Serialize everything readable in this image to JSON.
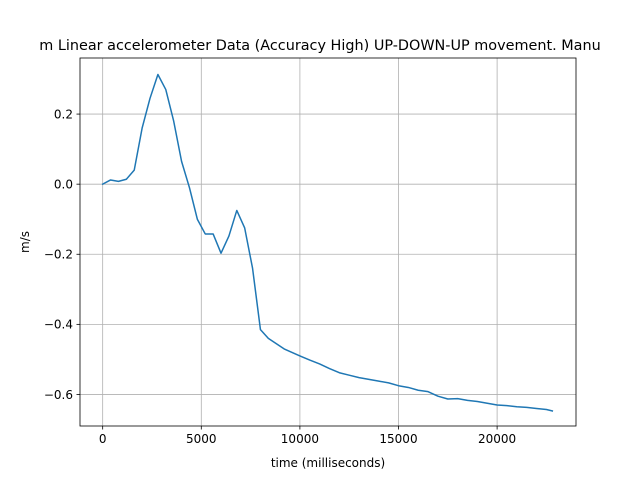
{
  "chart_data": {
    "type": "line",
    "title": "m Linear accelerometer Data (Accuracy High) UP-DOWN-UP movement. Manu",
    "xlabel": "time (milliseconds)",
    "ylabel": "m/s",
    "xlim": [
      -1150,
      24000
    ],
    "ylim": [
      -0.69,
      0.36
    ],
    "xticks": [
      0,
      5000,
      10000,
      15000,
      20000
    ],
    "xtick_labels": [
      "0",
      "5000",
      "10000",
      "15000",
      "20000"
    ],
    "yticks": [
      0.2,
      0.0,
      -0.2,
      -0.4,
      -0.6
    ],
    "ytick_labels": [
      "0.2",
      "0.0",
      "−0.2",
      "−0.4",
      "−0.6"
    ],
    "grid": true,
    "series": [
      {
        "color": "#1f77b4",
        "x": [
          0,
          400,
          800,
          1200,
          1600,
          2000,
          2400,
          2800,
          3200,
          3600,
          4000,
          4400,
          4800,
          5200,
          5600,
          6000,
          6400,
          6800,
          7200,
          7600,
          8000,
          8400,
          8800,
          9200,
          9600,
          10000,
          10500,
          11000,
          11500,
          12000,
          12500,
          13000,
          13500,
          14000,
          14500,
          15000,
          15500,
          16000,
          16500,
          17000,
          17500,
          18000,
          18500,
          19000,
          19500,
          20000,
          20500,
          21000,
          21500,
          22000,
          22500,
          22800
        ],
        "y": [
          0.0,
          0.012,
          0.008,
          0.014,
          0.04,
          0.16,
          0.245,
          0.313,
          0.27,
          0.18,
          0.065,
          -0.01,
          -0.1,
          -0.142,
          -0.142,
          -0.197,
          -0.148,
          -0.075,
          -0.125,
          -0.24,
          -0.415,
          -0.44,
          -0.455,
          -0.47,
          -0.48,
          -0.49,
          -0.502,
          -0.513,
          -0.526,
          -0.538,
          -0.545,
          -0.552,
          -0.557,
          -0.562,
          -0.567,
          -0.575,
          -0.58,
          -0.588,
          -0.592,
          -0.605,
          -0.613,
          -0.612,
          -0.617,
          -0.62,
          -0.625,
          -0.63,
          -0.632,
          -0.635,
          -0.637,
          -0.64,
          -0.643,
          -0.647
        ]
      }
    ]
  }
}
